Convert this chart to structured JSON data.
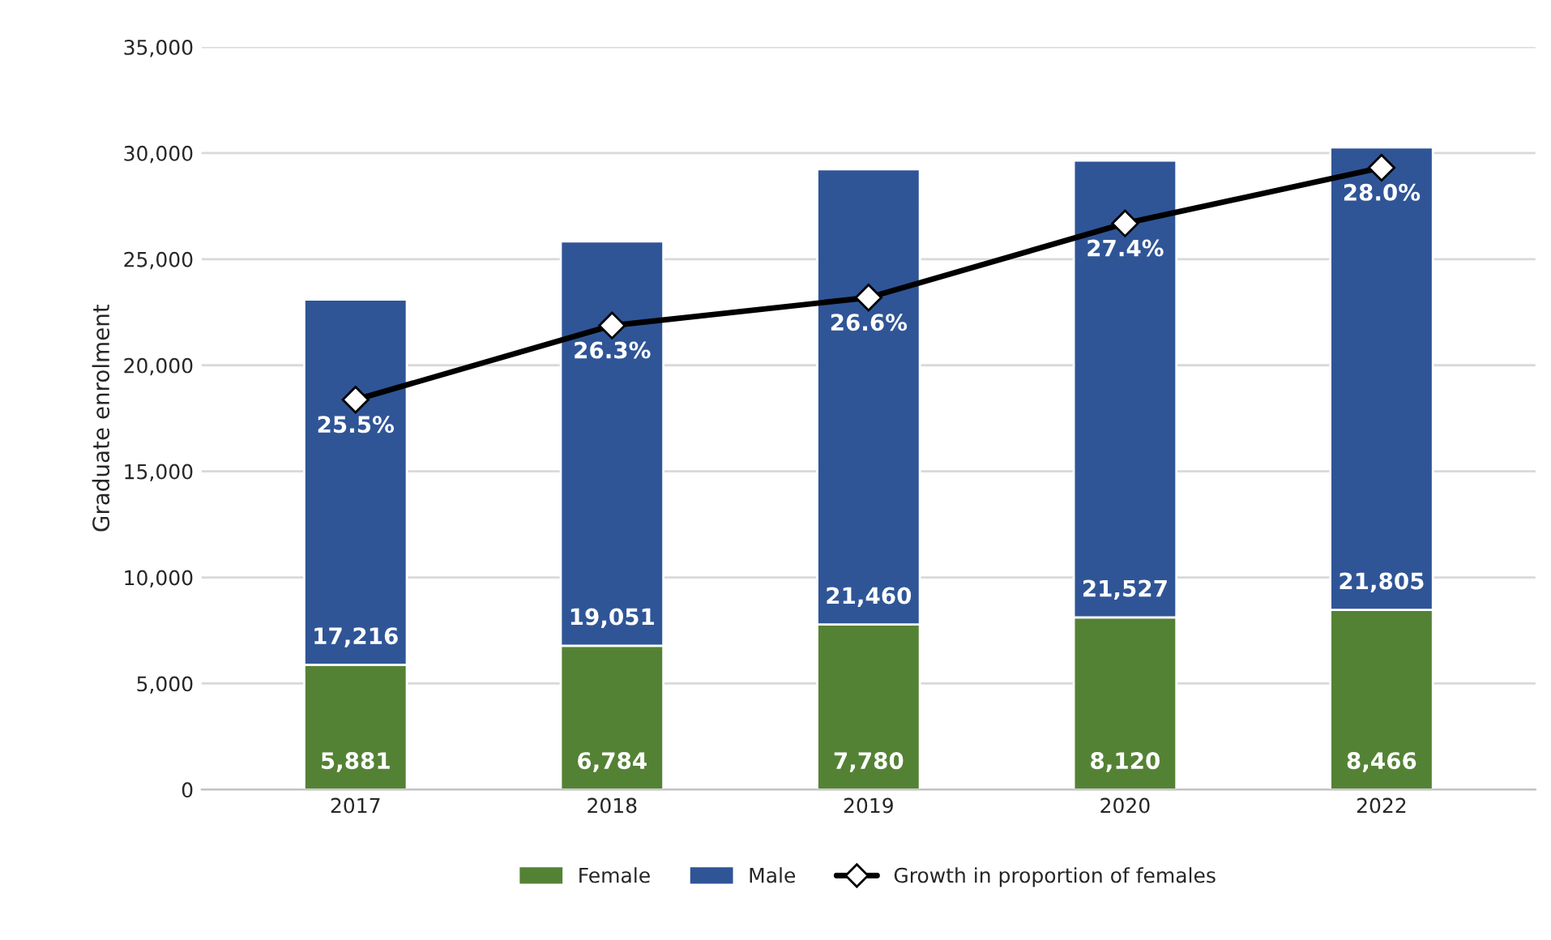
{
  "chart_data": {
    "type": "bar",
    "stacked": true,
    "ylabel": "Graduate enrolment",
    "categories": [
      "2017",
      "2018",
      "2019",
      "2020",
      "2022"
    ],
    "series": [
      {
        "name": "Female",
        "color": "#548235",
        "values": [
          5881,
          6784,
          7780,
          8120,
          8466
        ],
        "value_labels": [
          "5,881",
          "6,784",
          "7,780",
          "8,120",
          "8,466"
        ]
      },
      {
        "name": "Male",
        "color": "#2f5597",
        "values": [
          17216,
          19051,
          21460,
          21527,
          21805
        ],
        "value_labels": [
          "17,216",
          "19,051",
          "21,460",
          "21,527",
          "21,805"
        ]
      },
      {
        "name": "Growth in proportion of females",
        "type": "line",
        "axis": "y2",
        "color": "#000000",
        "marker": "diamond",
        "values": [
          25.5,
          26.3,
          26.6,
          27.4,
          28.0
        ],
        "value_labels": [
          "25.5%",
          "26.3%",
          "26.6%",
          "27.4%",
          "28.0%"
        ]
      }
    ],
    "ylim": [
      0,
      35000
    ],
    "yticks": [
      {
        "value": 0,
        "label": "0"
      },
      {
        "value": 5000,
        "label": "5,000"
      },
      {
        "value": 10000,
        "label": "10,000"
      },
      {
        "value": 15000,
        "label": "15,000"
      },
      {
        "value": 20000,
        "label": "20,000"
      },
      {
        "value": 25000,
        "label": "25,000"
      },
      {
        "value": 30000,
        "label": "30,000"
      },
      {
        "value": 35000,
        "label": "35,000"
      }
    ],
    "y2lim": [
      21.3,
      29.3
    ],
    "tick_labels": "xy",
    "grid": "y",
    "legend": "bottom"
  }
}
